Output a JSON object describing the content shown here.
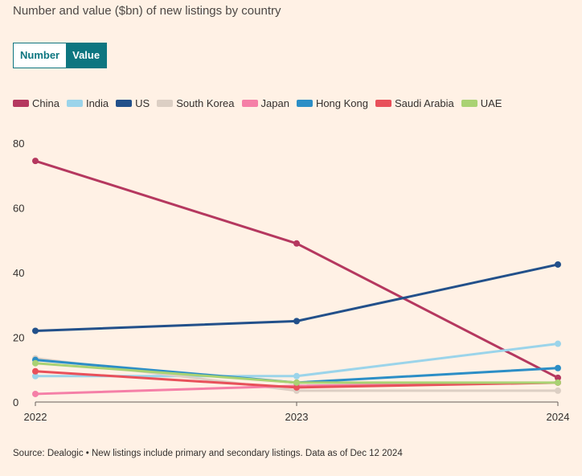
{
  "title": "Number and value ($bn) of new listings by country",
  "toggle": {
    "number_label": "Number",
    "value_label": "Value",
    "selected": "Value"
  },
  "source": "Source: Dealogic • New listings include primary and secondary listings. Data as of Dec 12 2024",
  "chart_data": {
    "type": "line",
    "title": "Number and value ($bn) of new listings by country",
    "xlabel": "",
    "ylabel": "",
    "x": [
      "2022",
      "2023",
      "2024"
    ],
    "ylim": [
      0,
      80
    ],
    "y_ticks": [
      0,
      20,
      40,
      60,
      80
    ],
    "grid": false,
    "legend_position": "top",
    "series": [
      {
        "name": "China",
        "color": "#b5385f",
        "values": [
          74.5,
          49,
          7.5
        ]
      },
      {
        "name": "India",
        "color": "#9bd4ea",
        "values": [
          8,
          8,
          18
        ]
      },
      {
        "name": "US",
        "color": "#22508a",
        "values": [
          22,
          25,
          42.5
        ]
      },
      {
        "name": "South Korea",
        "color": "#dccfc4",
        "values": [
          13.5,
          3.5,
          3.5
        ]
      },
      {
        "name": "Japan",
        "color": "#f57fa7",
        "values": [
          2.5,
          5,
          6
        ]
      },
      {
        "name": "Hong Kong",
        "color": "#2c8ec6",
        "values": [
          13,
          6,
          10.5
        ]
      },
      {
        "name": "Saudi Arabia",
        "color": "#e8505a",
        "values": [
          9.5,
          4.5,
          6
        ]
      },
      {
        "name": "UAE",
        "color": "#a9d273",
        "values": [
          12,
          6,
          6
        ]
      }
    ]
  }
}
